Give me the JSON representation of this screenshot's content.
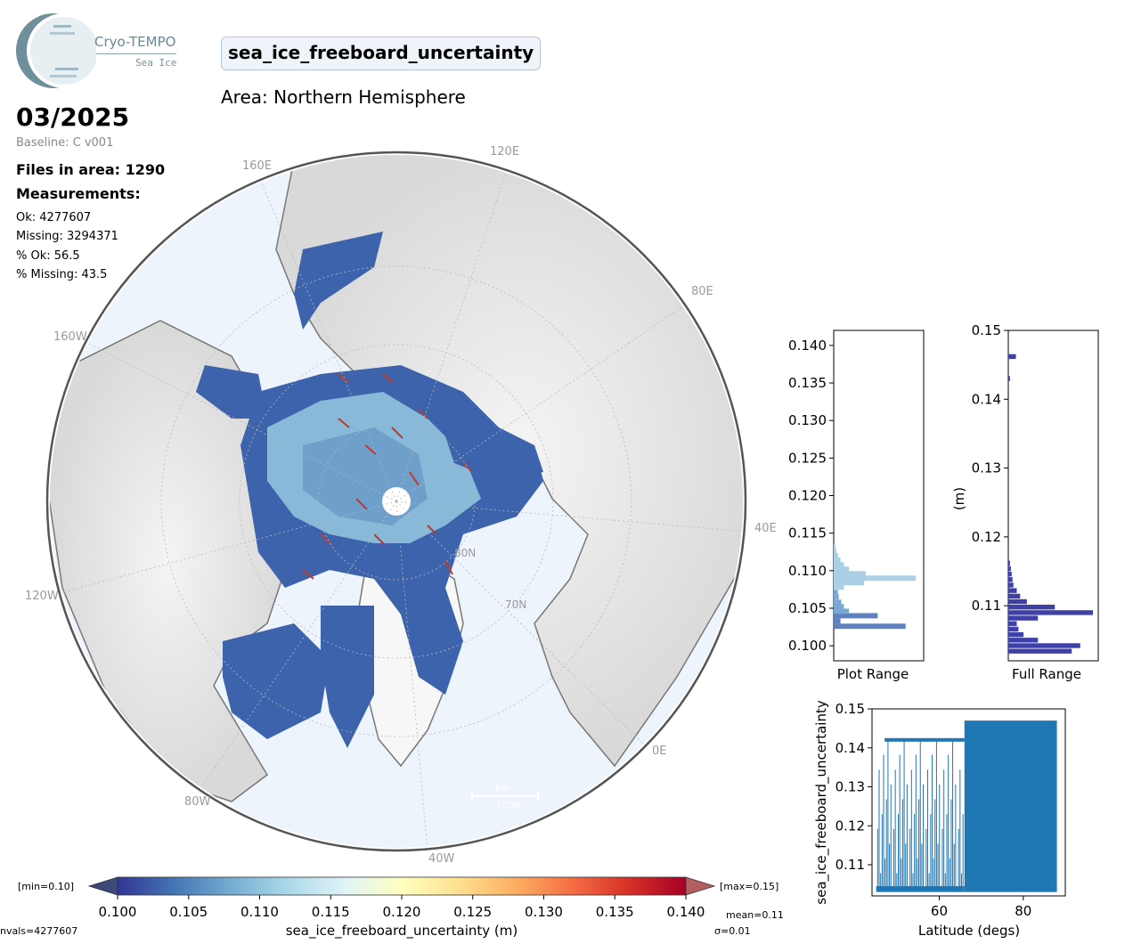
{
  "logo": {
    "line1": "Cryo-TEMPO",
    "line2": "Sea Ice"
  },
  "variable": "sea_ice_freeboard_uncertainty",
  "area": "Area: Northern Hemisphere",
  "date": "03/2025",
  "baseline": "Baseline: C v001",
  "files_in_area": "Files in area: 1290",
  "measurements_title": "Measurements:",
  "stats": {
    "ok": "Ok: 4277607",
    "missing": "Missing: 3294371",
    "pct_ok": "% Ok: 56.5",
    "pct_missing": "% Missing: 43.5"
  },
  "map": {
    "labels": {
      "lon_120e": "120E",
      "lon_160e": "160E",
      "lon_80e": "80E",
      "lon_160w": "160W",
      "lon_40e": "40E",
      "lon_120w": "120W",
      "lon_0e": "0E",
      "lon_80w": "80W",
      "lon_40w": "40W",
      "lat_80n": "80N",
      "lat_70n": "70N"
    },
    "scale_label_top": "km",
    "scale_label_bottom": "1000"
  },
  "colorbar": {
    "min_label": "[min=0.10]",
    "max_label": "[max=0.15]",
    "ticks": [
      "0.100",
      "0.105",
      "0.110",
      "0.115",
      "0.120",
      "0.125",
      "0.130",
      "0.135",
      "0.140"
    ],
    "label": "sea_ice_freeboard_uncertainty (m)",
    "mean": "mean=0.11",
    "sigma": "σ=0.01",
    "nvals": "nvals=4277607",
    "colors": [
      "#313695",
      "#4575b4",
      "#74add1",
      "#abd9e9",
      "#e0f3f8",
      "#ffffbf",
      "#fee090",
      "#fdae61",
      "#f46d43",
      "#d73027",
      "#a50026"
    ]
  },
  "chart_data": [
    {
      "type": "bar",
      "orientation": "horizontal",
      "xlabel": "Plot Range",
      "ylim": [
        0.098,
        0.142
      ],
      "yticks": [
        "0.100",
        "0.105",
        "0.110",
        "0.115",
        "0.120",
        "0.125",
        "0.130",
        "0.135",
        "0.140"
      ],
      "bins_y": [
        0.1026,
        0.1033,
        0.104,
        0.1046,
        0.1052,
        0.1058,
        0.1065,
        0.1071,
        0.1078,
        0.1084,
        0.109,
        0.1096,
        0.1102,
        0.1108,
        0.1114,
        0.112,
        0.1126,
        0.1132
      ],
      "counts": [
        0.85,
        0.08,
        0.52,
        0.18,
        0.12,
        0.09,
        0.06,
        0.05,
        0.12,
        0.36,
        0.97,
        0.38,
        0.18,
        0.12,
        0.08,
        0.05,
        0.03,
        0.02
      ]
    },
    {
      "type": "bar",
      "orientation": "horizontal",
      "xlabel": "Full Range",
      "ylabel": "(m)",
      "ylim": [
        0.102,
        0.15
      ],
      "yticks": [
        "0.11",
        "0.12",
        "0.13",
        "0.14",
        "0.15"
      ],
      "bins_y": [
        0.1034,
        0.1042,
        0.105,
        0.1058,
        0.1066,
        0.1074,
        0.1082,
        0.109,
        0.1098,
        0.1106,
        0.1114,
        0.1122,
        0.113,
        0.1138,
        0.1146,
        0.1154,
        0.1162,
        0.143,
        0.1462
      ],
      "counts": [
        0.75,
        0.85,
        0.35,
        0.18,
        0.12,
        0.1,
        0.35,
        1.0,
        0.55,
        0.22,
        0.14,
        0.1,
        0.06,
        0.05,
        0.04,
        0.03,
        0.02,
        0.02,
        0.09
      ]
    },
    {
      "type": "scatter",
      "xlabel": "Latitude (degs)",
      "ylabel": "sea_ice_freeboard_uncertainty",
      "xlim": [
        44,
        90
      ],
      "ylim": [
        0.102,
        0.15
      ],
      "xticks": [
        "60",
        "80"
      ],
      "yticks": [
        "0.11",
        "0.12",
        "0.13",
        "0.14",
        "0.15"
      ],
      "color": "#1f77b4"
    }
  ]
}
